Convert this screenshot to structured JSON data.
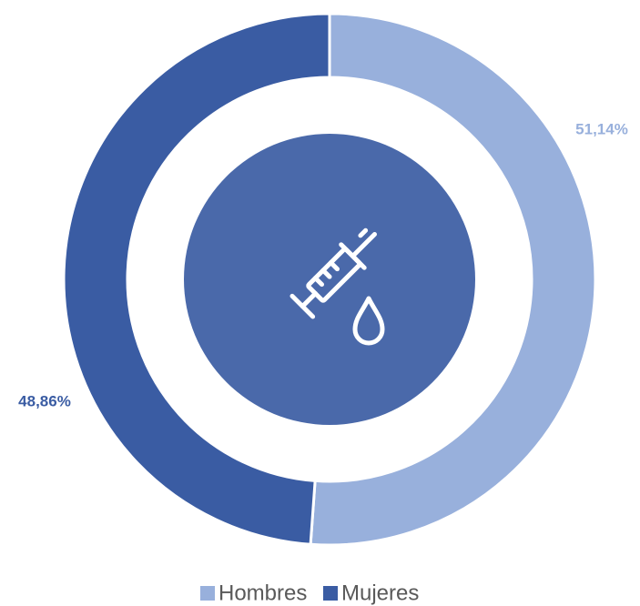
{
  "chart_data": {
    "type": "donut",
    "categories": [
      "Hombres",
      "Mujeres"
    ],
    "series": [
      {
        "name": "Share",
        "values": [
          51.14,
          48.86
        ],
        "value_labels": [
          "51,14%",
          "48,86%"
        ]
      }
    ],
    "colors": [
      "#98b0dc",
      "#3a5ca3"
    ],
    "legend": "bottom"
  }
}
